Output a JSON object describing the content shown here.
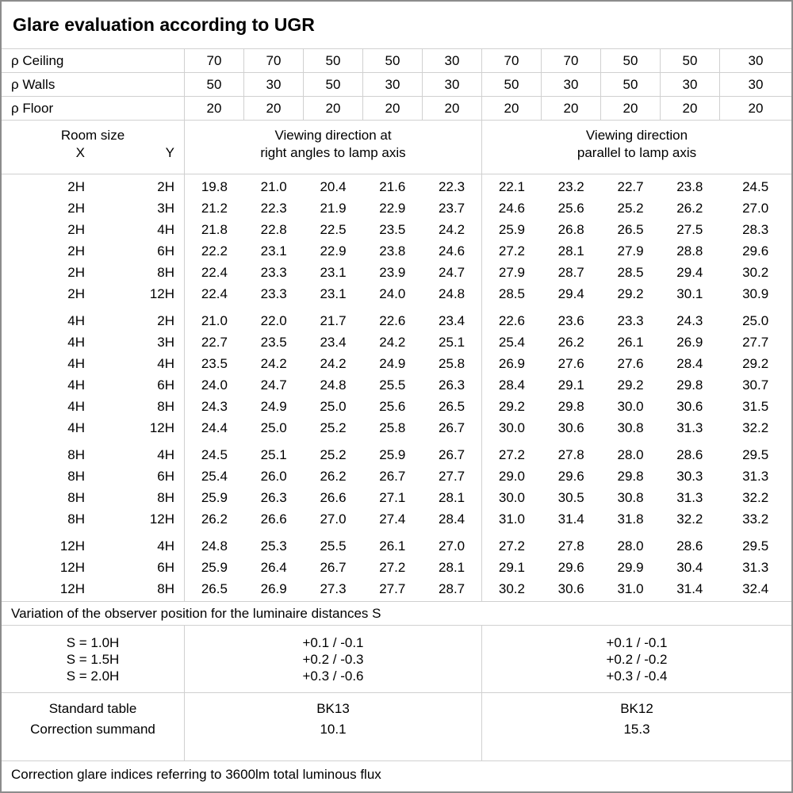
{
  "title": "Glare evaluation according to UGR",
  "reflectance": {
    "rows": [
      {
        "label": "ρ Ceiling",
        "values": [
          "70",
          "70",
          "50",
          "50",
          "30",
          "70",
          "70",
          "50",
          "50",
          "30"
        ]
      },
      {
        "label": "ρ Walls",
        "values": [
          "50",
          "30",
          "50",
          "30",
          "30",
          "50",
          "30",
          "50",
          "30",
          "30"
        ]
      },
      {
        "label": "ρ Floor",
        "values": [
          "20",
          "20",
          "20",
          "20",
          "20",
          "20",
          "20",
          "20",
          "20",
          "20"
        ]
      }
    ]
  },
  "header": {
    "room_size_label": "Room size",
    "x_label": "X",
    "y_label": "Y",
    "right_angle_heading": [
      "Viewing direction at",
      "right angles to lamp axis"
    ],
    "parallel_heading": [
      "Viewing direction",
      "parallel to lamp axis"
    ]
  },
  "table": {
    "groups": [
      {
        "rows": [
          {
            "x": "2H",
            "y": "2H",
            "ra": [
              "19.8",
              "21.0",
              "20.4",
              "21.6",
              "22.3"
            ],
            "pa": [
              "22.1",
              "23.2",
              "22.7",
              "23.8",
              "24.5"
            ]
          },
          {
            "x": "2H",
            "y": "3H",
            "ra": [
              "21.2",
              "22.3",
              "21.9",
              "22.9",
              "23.7"
            ],
            "pa": [
              "24.6",
              "25.6",
              "25.2",
              "26.2",
              "27.0"
            ]
          },
          {
            "x": "2H",
            "y": "4H",
            "ra": [
              "21.8",
              "22.8",
              "22.5",
              "23.5",
              "24.2"
            ],
            "pa": [
              "25.9",
              "26.8",
              "26.5",
              "27.5",
              "28.3"
            ]
          },
          {
            "x": "2H",
            "y": "6H",
            "ra": [
              "22.2",
              "23.1",
              "22.9",
              "23.8",
              "24.6"
            ],
            "pa": [
              "27.2",
              "28.1",
              "27.9",
              "28.8",
              "29.6"
            ]
          },
          {
            "x": "2H",
            "y": "8H",
            "ra": [
              "22.4",
              "23.3",
              "23.1",
              "23.9",
              "24.7"
            ],
            "pa": [
              "27.9",
              "28.7",
              "28.5",
              "29.4",
              "30.2"
            ]
          },
          {
            "x": "2H",
            "y": "12H",
            "ra": [
              "22.4",
              "23.3",
              "23.1",
              "24.0",
              "24.8"
            ],
            "pa": [
              "28.5",
              "29.4",
              "29.2",
              "30.1",
              "30.9"
            ]
          }
        ]
      },
      {
        "rows": [
          {
            "x": "4H",
            "y": "2H",
            "ra": [
              "21.0",
              "22.0",
              "21.7",
              "22.6",
              "23.4"
            ],
            "pa": [
              "22.6",
              "23.6",
              "23.3",
              "24.3",
              "25.0"
            ]
          },
          {
            "x": "4H",
            "y": "3H",
            "ra": [
              "22.7",
              "23.5",
              "23.4",
              "24.2",
              "25.1"
            ],
            "pa": [
              "25.4",
              "26.2",
              "26.1",
              "26.9",
              "27.7"
            ]
          },
          {
            "x": "4H",
            "y": "4H",
            "ra": [
              "23.5",
              "24.2",
              "24.2",
              "24.9",
              "25.8"
            ],
            "pa": [
              "26.9",
              "27.6",
              "27.6",
              "28.4",
              "29.2"
            ]
          },
          {
            "x": "4H",
            "y": "6H",
            "ra": [
              "24.0",
              "24.7",
              "24.8",
              "25.5",
              "26.3"
            ],
            "pa": [
              "28.4",
              "29.1",
              "29.2",
              "29.8",
              "30.7"
            ]
          },
          {
            "x": "4H",
            "y": "8H",
            "ra": [
              "24.3",
              "24.9",
              "25.0",
              "25.6",
              "26.5"
            ],
            "pa": [
              "29.2",
              "29.8",
              "30.0",
              "30.6",
              "31.5"
            ]
          },
          {
            "x": "4H",
            "y": "12H",
            "ra": [
              "24.4",
              "25.0",
              "25.2",
              "25.8",
              "26.7"
            ],
            "pa": [
              "30.0",
              "30.6",
              "30.8",
              "31.3",
              "32.2"
            ]
          }
        ]
      },
      {
        "rows": [
          {
            "x": "8H",
            "y": "4H",
            "ra": [
              "24.5",
              "25.1",
              "25.2",
              "25.9",
              "26.7"
            ],
            "pa": [
              "27.2",
              "27.8",
              "28.0",
              "28.6",
              "29.5"
            ]
          },
          {
            "x": "8H",
            "y": "6H",
            "ra": [
              "25.4",
              "26.0",
              "26.2",
              "26.7",
              "27.7"
            ],
            "pa": [
              "29.0",
              "29.6",
              "29.8",
              "30.3",
              "31.3"
            ]
          },
          {
            "x": "8H",
            "y": "8H",
            "ra": [
              "25.9",
              "26.3",
              "26.6",
              "27.1",
              "28.1"
            ],
            "pa": [
              "30.0",
              "30.5",
              "30.8",
              "31.3",
              "32.2"
            ]
          },
          {
            "x": "8H",
            "y": "12H",
            "ra": [
              "26.2",
              "26.6",
              "27.0",
              "27.4",
              "28.4"
            ],
            "pa": [
              "31.0",
              "31.4",
              "31.8",
              "32.2",
              "33.2"
            ]
          }
        ]
      },
      {
        "rows": [
          {
            "x": "12H",
            "y": "4H",
            "ra": [
              "24.8",
              "25.3",
              "25.5",
              "26.1",
              "27.0"
            ],
            "pa": [
              "27.2",
              "27.8",
              "28.0",
              "28.6",
              "29.5"
            ]
          },
          {
            "x": "12H",
            "y": "6H",
            "ra": [
              "25.9",
              "26.4",
              "26.7",
              "27.2",
              "28.1"
            ],
            "pa": [
              "29.1",
              "29.6",
              "29.9",
              "30.4",
              "31.3"
            ]
          },
          {
            "x": "12H",
            "y": "8H",
            "ra": [
              "26.5",
              "26.9",
              "27.3",
              "27.7",
              "28.7"
            ],
            "pa": [
              "30.2",
              "30.6",
              "31.0",
              "31.4",
              "32.4"
            ]
          }
        ]
      }
    ]
  },
  "variation": {
    "heading": "Variation of the observer position for the luminaire distances S",
    "s_labels": [
      "S = 1.0H",
      "S = 1.5H",
      "S = 2.0H"
    ],
    "right_angle_values": [
      "+0.1 / -0.1",
      "+0.2 / -0.3",
      "+0.3 / -0.6"
    ],
    "parallel_values": [
      "+0.1 / -0.1",
      "+0.2 / -0.2",
      "+0.3 / -0.4"
    ]
  },
  "summary": {
    "row_labels": [
      "Standard table",
      "Correction summand"
    ],
    "right_angle_values": [
      "BK13",
      "10.1"
    ],
    "parallel_values": [
      "BK12",
      "15.3"
    ]
  },
  "footer": {
    "note": "Correction glare indices referring to 3600lm total luminous flux"
  },
  "colors": {
    "background": "#ffffff",
    "text": "#000000",
    "grid_line": "#d0d0d0",
    "outer_border": "#8c8c8c"
  }
}
